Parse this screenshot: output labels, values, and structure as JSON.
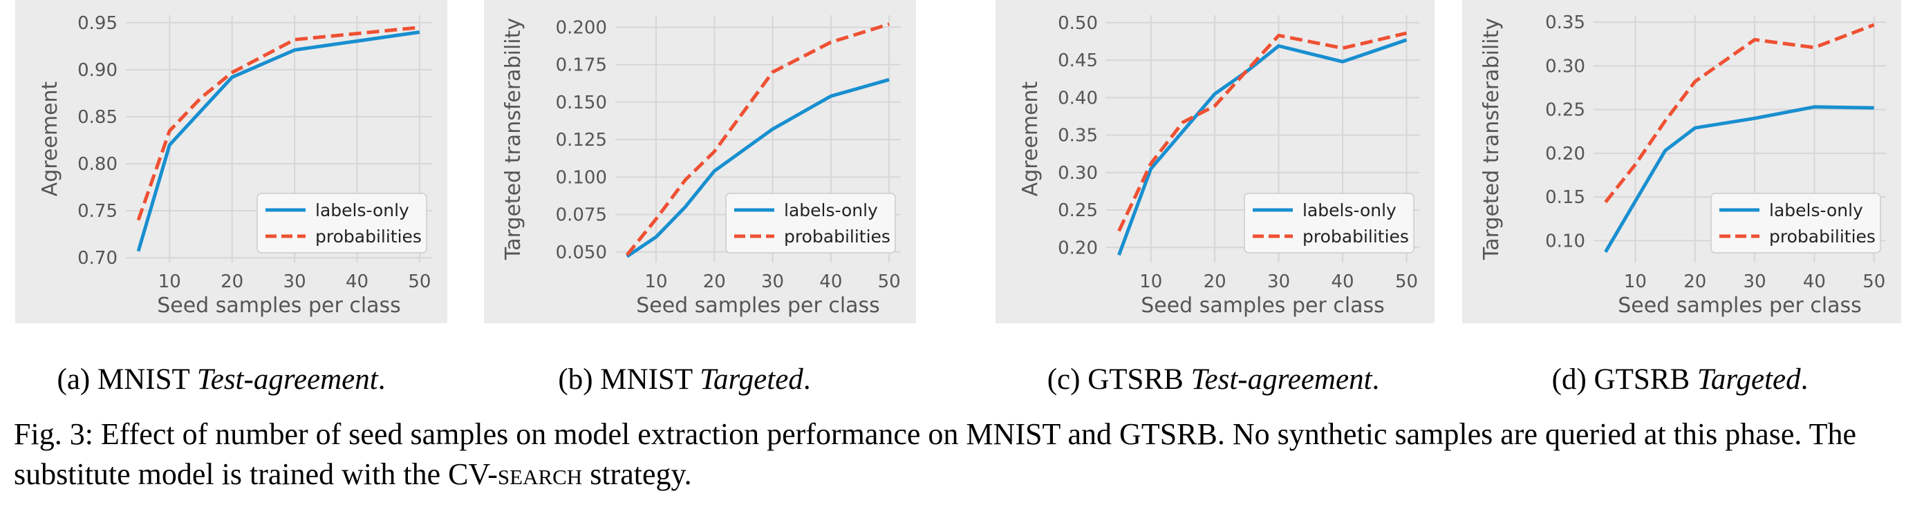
{
  "colors": {
    "labels_only": "#188fd0",
    "probabilities": "#ef5033",
    "panel_bg": "#ebebeb",
    "grid": "#d6d6d6",
    "text": "#555555"
  },
  "chart_data": [
    {
      "type": "line",
      "xlabel": "Seed samples per class",
      "ylabel": "Agreement",
      "xticks": [
        10,
        20,
        30,
        40,
        50
      ],
      "yticks": [
        0.7,
        0.75,
        0.8,
        0.85,
        0.9,
        0.95
      ],
      "ytick_labels": [
        "0.70",
        "0.75",
        "0.80",
        "0.85",
        "0.90",
        "0.95"
      ],
      "xlim": [
        3,
        52
      ],
      "ylim": [
        0.695,
        0.958
      ],
      "legend_location": "lower-right",
      "series": [
        {
          "name": "labels-only",
          "style": "solid",
          "x": [
            5,
            10,
            20,
            30,
            50
          ],
          "y": [
            0.707,
            0.82,
            0.892,
            0.921,
            0.94
          ]
        },
        {
          "name": "probabilities",
          "style": "dashed",
          "x": [
            5,
            10,
            15,
            20,
            30,
            50
          ],
          "y": [
            0.74,
            0.835,
            0.87,
            0.897,
            0.932,
            0.945
          ]
        }
      ],
      "caption_prefix": "(a) MNIST ",
      "caption_italic": "Test-agreement",
      "caption_suffix": "."
    },
    {
      "type": "line",
      "xlabel": "Seed samples per class",
      "ylabel": "Targeted transferability",
      "xticks": [
        10,
        20,
        30,
        40,
        50
      ],
      "yticks": [
        0.05,
        0.075,
        0.1,
        0.125,
        0.15,
        0.175,
        0.2
      ],
      "ytick_labels": [
        "0.050",
        "0.075",
        "0.100",
        "0.125",
        "0.150",
        "0.175",
        "0.200"
      ],
      "xlim": [
        3,
        52
      ],
      "ylim": [
        0.043,
        0.208
      ],
      "legend_location": "lower-right",
      "series": [
        {
          "name": "labels-only",
          "style": "solid",
          "x": [
            5,
            10,
            15,
            20,
            30,
            40,
            50
          ],
          "y": [
            0.047,
            0.06,
            0.08,
            0.104,
            0.132,
            0.154,
            0.165
          ]
        },
        {
          "name": "probabilities",
          "style": "dashed",
          "x": [
            5,
            10,
            15,
            20,
            30,
            40,
            50
          ],
          "y": [
            0.048,
            0.072,
            0.098,
            0.117,
            0.17,
            0.19,
            0.202
          ]
        }
      ],
      "caption_prefix": "(b) MNIST ",
      "caption_italic": "Targeted",
      "caption_suffix": "."
    },
    {
      "type": "line",
      "xlabel": "Seed samples per class",
      "ylabel": "Agreement",
      "xticks": [
        10,
        20,
        30,
        40,
        50
      ],
      "yticks": [
        0.2,
        0.25,
        0.3,
        0.35,
        0.4,
        0.45,
        0.5
      ],
      "ytick_labels": [
        "0.20",
        "0.25",
        "0.30",
        "0.35",
        "0.40",
        "0.45",
        "0.50"
      ],
      "xlim": [
        3,
        52
      ],
      "ylim": [
        0.18,
        0.51
      ],
      "legend_location": "lower-right",
      "series": [
        {
          "name": "labels-only",
          "style": "solid",
          "x": [
            5,
            10,
            20,
            25,
            30,
            40,
            50
          ],
          "y": [
            0.19,
            0.305,
            0.405,
            0.435,
            0.469,
            0.448,
            0.477
          ]
        },
        {
          "name": "probabilities",
          "style": "dashed",
          "x": [
            5,
            10,
            15,
            20,
            30,
            40,
            50
          ],
          "y": [
            0.222,
            0.312,
            0.367,
            0.389,
            0.483,
            0.466,
            0.486
          ]
        }
      ],
      "caption_prefix": "(c) GTSRB ",
      "caption_italic": "Test-agreement",
      "caption_suffix": "."
    },
    {
      "type": "line",
      "xlabel": "Seed samples per class",
      "ylabel": "Targeted transferability",
      "xticks": [
        10,
        20,
        30,
        40,
        50
      ],
      "yticks": [
        0.1,
        0.15,
        0.2,
        0.25,
        0.3,
        0.35
      ],
      "ytick_labels": [
        "0.10",
        "0.15",
        "0.20",
        "0.25",
        "0.30",
        "0.35"
      ],
      "xlim": [
        3,
        52
      ],
      "ylim": [
        0.075,
        0.358
      ],
      "legend_location": "lower-right",
      "series": [
        {
          "name": "labels-only",
          "style": "solid",
          "x": [
            5,
            10,
            15,
            20,
            30,
            40,
            50
          ],
          "y": [
            0.087,
            0.145,
            0.203,
            0.229,
            0.24,
            0.253,
            0.252
          ]
        },
        {
          "name": "probabilities",
          "style": "dashed",
          "x": [
            5,
            10,
            15,
            20,
            30,
            40,
            50
          ],
          "y": [
            0.144,
            0.187,
            0.237,
            0.282,
            0.33,
            0.321,
            0.347
          ]
        }
      ],
      "caption_prefix": "(d) GTSRB ",
      "caption_italic": "Targeted",
      "caption_suffix": "."
    }
  ],
  "caption": {
    "prefix": "Fig. 3: Effect of number of seed samples on model extraction performance on MNIST and GTSRB. No synthetic samples are queried at this phase. The substitute model is trained with the ",
    "cv": "CV-",
    "search": "search",
    "suffix": " strategy."
  }
}
